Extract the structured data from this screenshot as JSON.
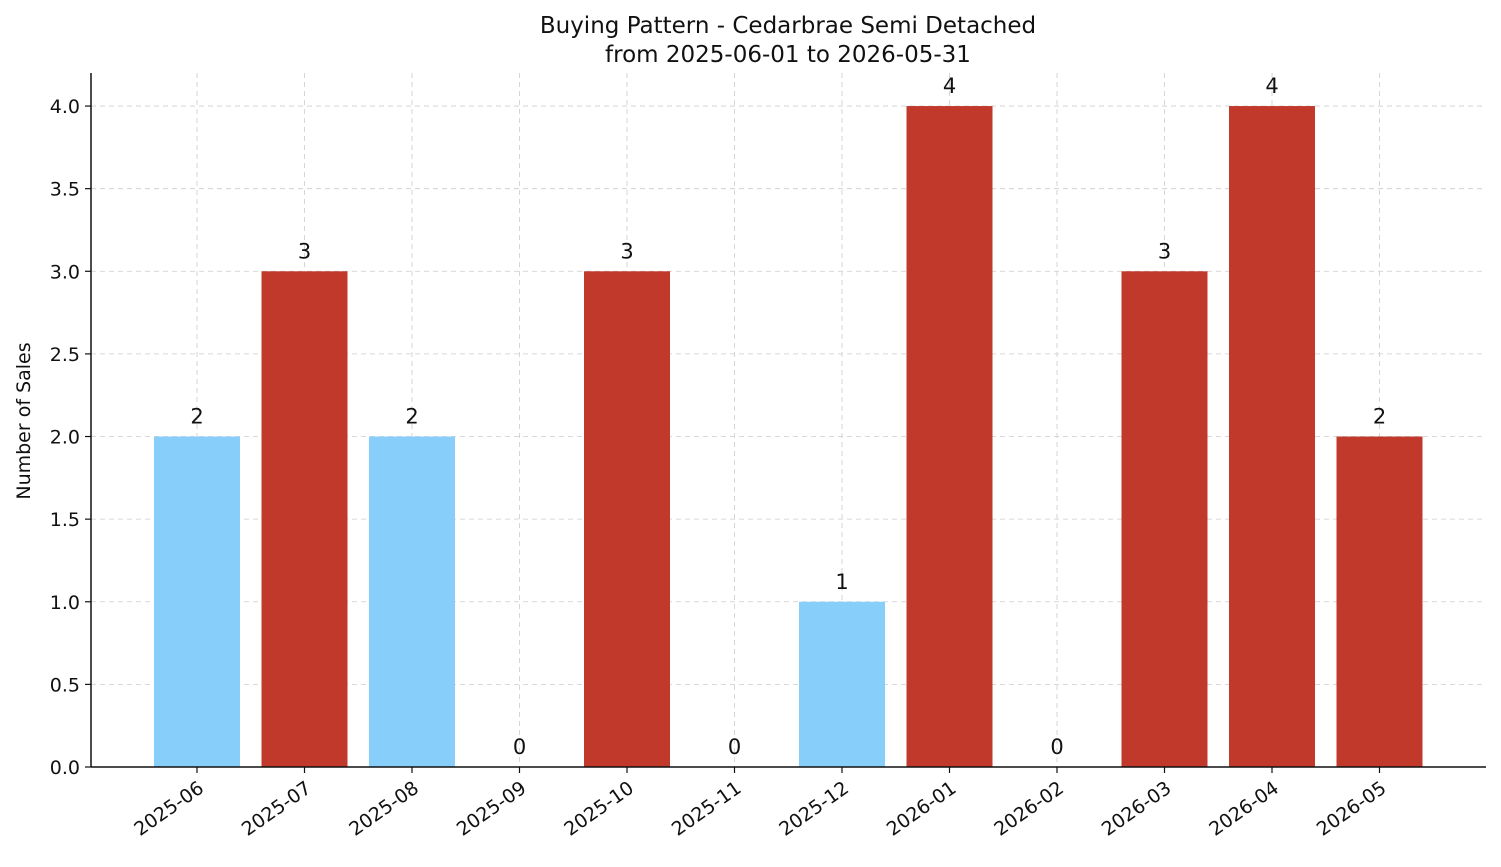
{
  "chart_data": {
    "type": "bar",
    "title": "Buying Pattern - Cedarbrae Semi Detached",
    "subtitle": "from 2025-06-01 to 2026-05-31",
    "xlabel": "",
    "ylabel": "Number of Sales",
    "ylim": [
      0,
      4.2
    ],
    "yticks": [
      "0.0",
      "0.5",
      "1.0",
      "1.5",
      "2.0",
      "2.5",
      "3.0",
      "3.5",
      "4.0"
    ],
    "grid": true,
    "categories": [
      "2025-06",
      "2025-07",
      "2025-08",
      "2025-09",
      "2025-10",
      "2025-11",
      "2025-12",
      "2026-01",
      "2026-02",
      "2026-03",
      "2026-04",
      "2026-05"
    ],
    "values": [
      2,
      3,
      2,
      0,
      3,
      0,
      1,
      4,
      0,
      3,
      4,
      2
    ],
    "data_labels": [
      "2",
      "3",
      "2",
      "0",
      "3",
      "0",
      "1",
      "4",
      "0",
      "3",
      "4",
      "2"
    ],
    "bar_colors": [
      "#87CEFA",
      "#C0392B",
      "#87CEFA",
      "#C0392B",
      "#C0392B",
      "#C0392B",
      "#87CEFA",
      "#C0392B",
      "#C0392B",
      "#C0392B",
      "#C0392B",
      "#C0392B"
    ]
  }
}
